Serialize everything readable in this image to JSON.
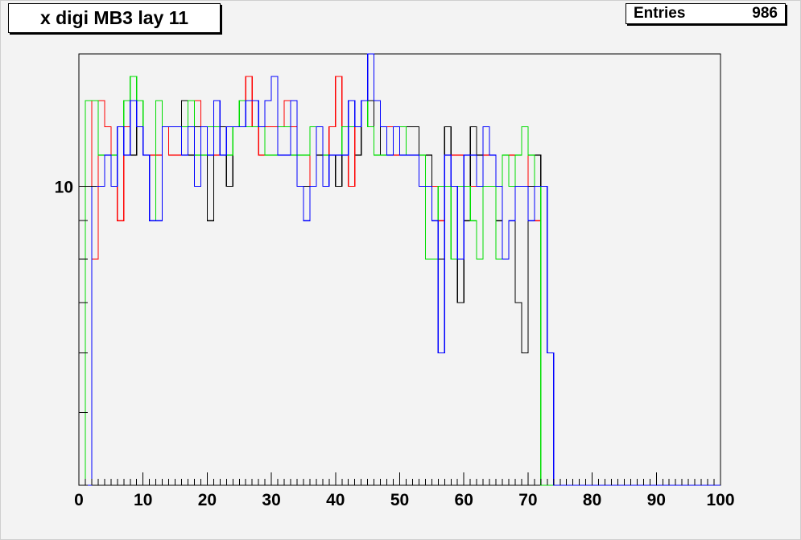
{
  "title": "x digi MB3 lay 11",
  "stats": {
    "label": "Entries",
    "value": "986"
  },
  "chart_data": {
    "type": "line",
    "title": "x digi MB3 lay 11",
    "xlabel": "",
    "ylabel": "",
    "xlim": [
      0,
      100
    ],
    "y_scale": "log",
    "ylim": [
      4,
      15
    ],
    "x_ticks": [
      "0",
      "10",
      "20",
      "30",
      "40",
      "50",
      "60",
      "70",
      "80",
      "90",
      "100"
    ],
    "y_tick_labels": [
      {
        "value": 10,
        "label": "10"
      }
    ],
    "bin_edges_start": 0,
    "bin_width": 1,
    "series": [
      {
        "color": "#000000",
        "values": [
          0,
          0,
          10,
          13,
          12,
          10,
          9,
          12,
          11,
          13,
          11,
          9,
          11,
          12,
          12,
          12,
          13,
          11,
          12,
          12,
          9,
          12,
          12,
          10,
          12,
          12,
          12,
          12,
          12,
          11,
          11,
          11,
          11,
          12,
          10,
          10,
          12,
          11,
          11,
          11,
          10,
          12,
          12,
          11,
          13,
          13,
          11,
          12,
          11,
          11,
          11,
          12,
          12,
          10,
          11,
          10,
          8,
          12,
          10,
          7,
          9,
          12,
          11,
          11,
          11,
          9,
          11,
          10,
          7,
          6,
          10,
          11,
          0,
          0,
          0,
          0,
          0,
          0,
          0,
          0,
          0,
          0,
          0,
          0,
          0,
          0,
          0,
          0,
          0,
          0,
          0,
          0,
          0,
          0,
          0,
          0,
          0,
          0,
          0,
          0
        ]
      },
      {
        "color": "#ff0000",
        "values": [
          0,
          13,
          8,
          13,
          12,
          10,
          9,
          12,
          13,
          12,
          11,
          11,
          11,
          12,
          11,
          11,
          12,
          12,
          13,
          12,
          11,
          11,
          11,
          12,
          12,
          13,
          14,
          12,
          11,
          12,
          12,
          12,
          13,
          12,
          11,
          11,
          10,
          12,
          11,
          12,
          14,
          11,
          10,
          12,
          13,
          12,
          11,
          11,
          12,
          11,
          11,
          11,
          11,
          11,
          10,
          10,
          9,
          10,
          11,
          11,
          10,
          10,
          10,
          11,
          11,
          10,
          11,
          11,
          10,
          10,
          11,
          9,
          0,
          0,
          0,
          0,
          0,
          0,
          0,
          0,
          0,
          0,
          0,
          0,
          0,
          0,
          0,
          0,
          0,
          0,
          0,
          0,
          0,
          0,
          0,
          0,
          0,
          0,
          0,
          0
        ]
      },
      {
        "color": "#00dd00",
        "values": [
          0,
          13,
          13,
          11,
          11,
          11,
          12,
          13,
          14,
          13,
          11,
          9,
          13,
          12,
          12,
          12,
          12,
          13,
          11,
          11,
          12,
          12,
          11,
          11,
          12,
          13,
          12,
          12,
          12,
          11,
          11,
          12,
          12,
          11,
          11,
          11,
          12,
          12,
          11,
          11,
          11,
          12,
          12,
          12,
          13,
          12,
          11,
          11,
          11,
          12,
          12,
          11,
          11,
          11,
          8,
          8,
          10,
          10,
          8,
          10,
          10,
          9,
          8,
          10,
          10,
          8,
          11,
          10,
          11,
          12,
          11,
          10,
          0,
          0,
          0,
          0,
          0,
          0,
          0,
          0,
          0,
          0,
          0,
          0,
          0,
          0,
          0,
          0,
          0,
          0,
          0,
          0,
          0,
          0,
          0,
          0,
          0,
          0,
          0,
          0
        ]
      },
      {
        "color": "#0000ff",
        "values": [
          0,
          0,
          10,
          10,
          11,
          10,
          12,
          11,
          13,
          12,
          11,
          9,
          9,
          12,
          12,
          12,
          11,
          12,
          10,
          12,
          11,
          13,
          11,
          12,
          12,
          12,
          13,
          13,
          12,
          13,
          14,
          11,
          11,
          13,
          10,
          9,
          10,
          12,
          10,
          11,
          11,
          11,
          13,
          12,
          13,
          15,
          13,
          12,
          11,
          12,
          11,
          11,
          11,
          10,
          10,
          9,
          6,
          11,
          10,
          8,
          11,
          11,
          10,
          12,
          11,
          10,
          8,
          9,
          10,
          10,
          9,
          10,
          10,
          6,
          0,
          0,
          0,
          0,
          0,
          0,
          0,
          0,
          0,
          0,
          0,
          0,
          0,
          0,
          0,
          0,
          0,
          0,
          0,
          0,
          0,
          0,
          0,
          0,
          0,
          0
        ]
      }
    ]
  }
}
